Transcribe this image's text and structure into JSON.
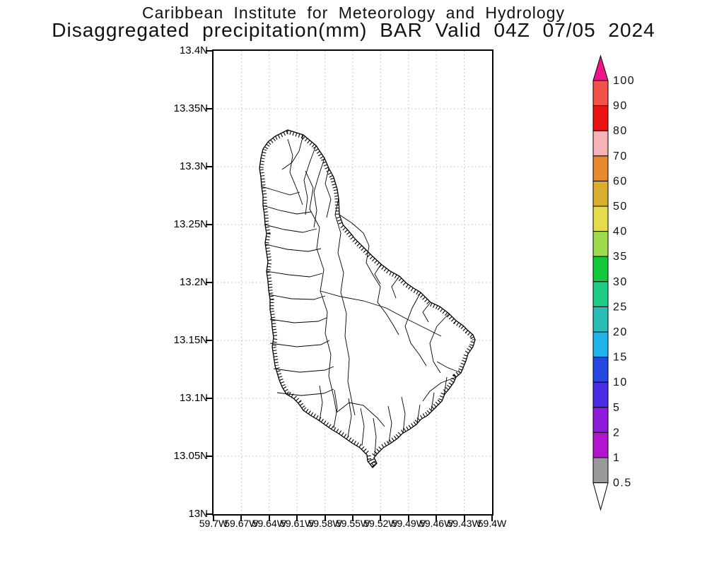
{
  "header": {
    "line1": "Caribbean Institute for Meteorology and Hydrology",
    "line2": "Disaggregated precipitation(mm) BAR Valid 04Z 07/05 2024"
  },
  "map": {
    "lat_labels": [
      "13.4N",
      "13.35N",
      "13.3N",
      "13.25N",
      "13.2N",
      "13.15N",
      "13.1N",
      "13.05N",
      "13N"
    ],
    "lon_labels": [
      "59.7W",
      "59.67W",
      "59.64W",
      "59.61W",
      "59.58W",
      "59.55W",
      "59.52W",
      "59.49W",
      "59.46W",
      "59.43W",
      "59.4W"
    ],
    "region_name": "Barbados watershed map",
    "grid_color": "#bbbbbb",
    "frame_color": "#000000",
    "coast_color": "#000000",
    "land_color": "#ffffff"
  },
  "legend": {
    "title": "precipitation (mm)",
    "values": [
      "100",
      "90",
      "80",
      "70",
      "60",
      "50",
      "40",
      "35",
      "30",
      "25",
      "20",
      "15",
      "10",
      "5",
      "2",
      "1",
      "0.5"
    ],
    "segment_colors": [
      "#f25248",
      "#ec1212",
      "#f6b2b6",
      "#e78a2e",
      "#d9ae2f",
      "#e5dc4e",
      "#9fdb4f",
      "#12c93b",
      "#1fca87",
      "#2abdb5",
      "#1fb2eb",
      "#2547e2",
      "#4b2ce2",
      "#8d1bda",
      "#b215ce",
      "#999999"
    ],
    "arrow_top_color": "#f0148c",
    "arrow_bottom_color": "#ffffff",
    "outline_color": "#000000"
  }
}
